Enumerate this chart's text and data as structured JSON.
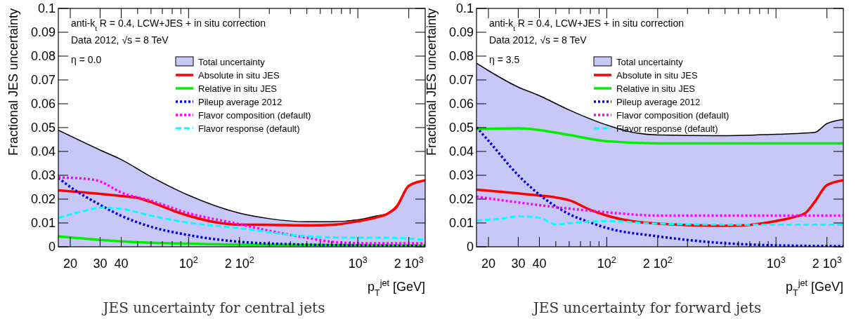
{
  "chart_data": [
    {
      "type": "line",
      "title": "JES uncertainty for central jets",
      "xlabel": "p$_{T}$$^{jet}$ [GeV]",
      "ylabel": "Fractional JES uncertainty",
      "annotations": [
        "anti-k$_{t}$ R = 0.4, LCW+JES + in situ correction",
        "Data 2012, √s = 8 TeV",
        "η = 0.0"
      ],
      "log": "x",
      "grid": false,
      "legend": "top right",
      "xlim": [
        17,
        2500
      ],
      "xticks": [
        {
          "value": 20,
          "label": "20"
        },
        {
          "value": 30,
          "label": "30"
        },
        {
          "value": 40,
          "label": "40"
        },
        {
          "value": 50,
          "label": null
        },
        {
          "value": 60,
          "label": null
        },
        {
          "value": 70,
          "label": null
        },
        {
          "value": 80,
          "label": null
        },
        {
          "value": 90,
          "label": null
        },
        {
          "value": 100,
          "label": "10$^{2}$"
        },
        {
          "value": 200,
          "label": "2 10$^{2}$"
        },
        {
          "value": 300,
          "label": null
        },
        {
          "value": 400,
          "label": null
        },
        {
          "value": 500,
          "label": null
        },
        {
          "value": 600,
          "label": null
        },
        {
          "value": 700,
          "label": null
        },
        {
          "value": 800,
          "label": null
        },
        {
          "value": 900,
          "label": null
        },
        {
          "value": 1000,
          "label": "10$^{3}$"
        },
        {
          "value": 2000,
          "label": "2 10$^{3}$"
        }
      ],
      "ylim": [
        0,
        0.1
      ],
      "yticks": [
        0,
        0.01,
        0.02,
        0.03,
        0.04,
        0.05,
        0.06,
        0.07,
        0.08,
        0.09,
        0.1
      ],
      "series": [
        {
          "name": "Total uncertainty",
          "type": "area",
          "color": "#c8c8f8",
          "x": [
            17,
            30,
            40,
            60,
            100,
            200,
            300,
            500,
            700,
            1000,
            1300,
            1500,
            1700,
            2000,
            2500
          ],
          "values": [
            0.0489,
            0.0406,
            0.0366,
            0.0294,
            0.0216,
            0.0141,
            0.0118,
            0.0105,
            0.0105,
            0.0113,
            0.013,
            0.0139,
            0.0164,
            0.0256,
            0.0279
          ]
        },
        {
          "name": "Absolute in situ JES",
          "color": "#ff0000",
          "line_style": "solid",
          "x": [
            17,
            30,
            40,
            50,
            60,
            80,
            100,
            150,
            200,
            300,
            500,
            700,
            1000,
            1300,
            1500,
            1700,
            2000,
            2500
          ],
          "values": [
            0.0237,
            0.0222,
            0.0213,
            0.0205,
            0.0187,
            0.0153,
            0.013,
            0.0101,
            0.0093,
            0.0092,
            0.009,
            0.0092,
            0.0107,
            0.0124,
            0.0139,
            0.017,
            0.0256,
            0.0279
          ]
        },
        {
          "name": "Relative in situ JES",
          "color": "#00ee00",
          "line_style": "solid",
          "x": [
            17,
            30,
            60,
            100,
            200,
            1000,
            2500
          ],
          "values": [
            0.0044,
            0.0029,
            0.0017,
            0.0013,
            0.0009,
            0.0007,
            0.0006
          ]
        },
        {
          "name": "Pileup average 2012",
          "color": "#0000ee",
          "line_style": "dotted",
          "x": [
            17,
            20,
            30,
            40,
            60,
            100,
            200,
            500,
            1000,
            2500
          ],
          "values": [
            0.0289,
            0.0251,
            0.0176,
            0.013,
            0.0084,
            0.0049,
            0.0021,
            0.0009,
            0.0006,
            0.0003
          ]
        },
        {
          "name": "Flavor composition (default)",
          "color": "#ff00ff",
          "line_style": "dotted",
          "x": [
            17,
            25,
            30,
            40,
            60,
            100,
            200,
            300,
            500,
            700,
            1000,
            2500
          ],
          "values": [
            0.0291,
            0.0285,
            0.0274,
            0.0228,
            0.0193,
            0.0141,
            0.0095,
            0.0067,
            0.0038,
            0.0021,
            0.0015,
            0.0015
          ]
        },
        {
          "name": "Flavor response (default)",
          "color": "#00ffff",
          "line_style": "dashed",
          "x": [
            17,
            25,
            30,
            40,
            60,
            100,
            200,
            500,
            1000,
            1500,
            2500
          ],
          "values": [
            0.0121,
            0.0153,
            0.0164,
            0.0159,
            0.013,
            0.0101,
            0.0078,
            0.0044,
            0.0038,
            0.0038,
            0.0029
          ]
        }
      ]
    },
    {
      "type": "line",
      "title": "JES uncertainty for forward jets",
      "xlabel": "p$_{T}$$^{jet}$ [GeV]",
      "ylabel": "Fractional JES uncertainty",
      "annotations": [
        "anti-k$_{t}$ R = 0.4, LCW+JES + in situ correction",
        "Data 2012, √s = 8 TeV",
        "η = 3.5"
      ],
      "log": "x",
      "grid": false,
      "legend": "top right",
      "xlim": [
        17,
        2500
      ],
      "xticks": [
        {
          "value": 20,
          "label": "20"
        },
        {
          "value": 30,
          "label": "30"
        },
        {
          "value": 40,
          "label": "40"
        },
        {
          "value": 50,
          "label": null
        },
        {
          "value": 60,
          "label": null
        },
        {
          "value": 70,
          "label": null
        },
        {
          "value": 80,
          "label": null
        },
        {
          "value": 90,
          "label": null
        },
        {
          "value": 100,
          "label": "10$^{2}$"
        },
        {
          "value": 200,
          "label": "2 10$^{2}$"
        },
        {
          "value": 300,
          "label": null
        },
        {
          "value": 400,
          "label": null
        },
        {
          "value": 500,
          "label": null
        },
        {
          "value": 600,
          "label": null
        },
        {
          "value": 700,
          "label": null
        },
        {
          "value": 800,
          "label": null
        },
        {
          "value": 900,
          "label": null
        },
        {
          "value": 1000,
          "label": "10$^{3}$"
        },
        {
          "value": 2000,
          "label": "2 10$^{3}$"
        }
      ],
      "ylim": [
        0,
        0.1
      ],
      "yticks": [
        0,
        0.01,
        0.02,
        0.03,
        0.04,
        0.05,
        0.06,
        0.07,
        0.08,
        0.09,
        0.1
      ],
      "series": [
        {
          "name": "Total uncertainty",
          "type": "area",
          "color": "#c8c8f8",
          "x": [
            17,
            20,
            30,
            40,
            60,
            100,
            150,
            200,
            500,
            1000,
            1500,
            1700,
            2000,
            2500
          ],
          "values": [
            0.077,
            0.0739,
            0.067,
            0.0634,
            0.0574,
            0.0511,
            0.0477,
            0.0469,
            0.0466,
            0.0472,
            0.0477,
            0.048,
            0.0517,
            0.0534
          ]
        },
        {
          "name": "Absolute in situ JES",
          "color": "#ff0000",
          "line_style": "solid",
          "x": [
            17,
            30,
            40,
            50,
            60,
            80,
            100,
            150,
            200,
            500,
            700,
            1000,
            1300,
            1500,
            1700,
            2000,
            2500
          ],
          "values": [
            0.024,
            0.0224,
            0.0215,
            0.0207,
            0.0195,
            0.0155,
            0.0131,
            0.0105,
            0.0097,
            0.0088,
            0.0092,
            0.0108,
            0.0126,
            0.0143,
            0.019,
            0.0259,
            0.0279
          ]
        },
        {
          "name": "Relative in situ JES",
          "color": "#00ee00",
          "line_style": "solid",
          "x": [
            17,
            30,
            40,
            60,
            100,
            200,
            2500
          ],
          "values": [
            0.0494,
            0.0497,
            0.049,
            0.0469,
            0.0443,
            0.0434,
            0.0434
          ]
        },
        {
          "name": "Pileup average 2012",
          "color": "#0000ee",
          "line_style": "dotted",
          "x": [
            17,
            20,
            30,
            40,
            60,
            80,
            100,
            200,
            500,
            1000,
            2500
          ],
          "values": [
            0.0501,
            0.0445,
            0.03,
            0.0219,
            0.0137,
            0.0102,
            0.0079,
            0.0044,
            0.0015,
            0.0006,
            0.0003
          ]
        },
        {
          "name": "Flavor composition (default)",
          "color": "#ff00ff",
          "line_style": "dotted",
          "x": [
            17,
            30,
            60,
            100,
            200,
            2500
          ],
          "values": [
            0.021,
            0.0186,
            0.016,
            0.0145,
            0.0131,
            0.0131
          ]
        },
        {
          "name": "Flavor response (default)",
          "color": "#00ffff",
          "line_style": "dashed",
          "x": [
            17,
            25,
            30,
            40,
            50,
            60,
            100,
            200,
            500,
            2500
          ],
          "values": [
            0.011,
            0.012,
            0.0128,
            0.0122,
            0.0094,
            0.0099,
            0.0108,
            0.0097,
            0.0093,
            0.0093
          ]
        }
      ]
    }
  ]
}
